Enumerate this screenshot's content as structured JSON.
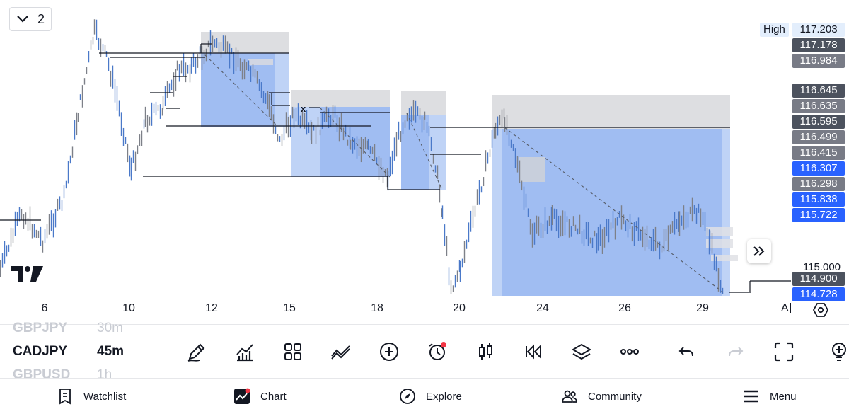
{
  "layout_count": "2",
  "price_labels": [
    {
      "text": "117.203",
      "kind": "high"
    },
    {
      "text": "117.178",
      "kind": "dark"
    },
    {
      "text": "116.984",
      "kind": "gray"
    },
    {
      "text": "116.645",
      "kind": "dark"
    },
    {
      "text": "116.635",
      "kind": "gray"
    },
    {
      "text": "116.595",
      "kind": "dark"
    },
    {
      "text": "116.499",
      "kind": "gray"
    },
    {
      "text": "116.415",
      "kind": "gray"
    },
    {
      "text": "116.307",
      "kind": "blue"
    },
    {
      "text": "116.298",
      "kind": "gray"
    },
    {
      "text": "115.838",
      "kind": "blue"
    },
    {
      "text": "115.722",
      "kind": "blue"
    },
    {
      "text": "115.000",
      "kind": "axis"
    },
    {
      "text": "114.900",
      "kind": "dark"
    },
    {
      "text": "114.728",
      "kind": "blue"
    }
  ],
  "high_tag": "High",
  "x_axis_dates": [
    "6",
    "10",
    "12",
    "15",
    "18",
    "20",
    "24",
    "26",
    "29"
  ],
  "auto_scale_label": "A",
  "colors": {
    "blue_label": "#2962ff",
    "dark_label": "#4c525e",
    "gray_label": "#787b86",
    "zone_gray": "#d1d4dc",
    "zone_blue": "#2962ff",
    "candle": "#4a79c9"
  },
  "toolbar": {
    "watchlist_rows": [
      {
        "symbol": "GBPJPY",
        "timeframe": "30m"
      },
      {
        "symbol": "CADJPY",
        "timeframe": "45m"
      },
      {
        "symbol": "GBPUSD",
        "timeframe": "1h"
      }
    ],
    "tools": [
      "pencil-icon",
      "indicators-icon",
      "grid-icon",
      "trend-icon",
      "plus-circle-icon",
      "alarm-icon",
      "candles-icon",
      "replay-icon",
      "layers-icon",
      "more-icon",
      "undo-icon",
      "redo-icon",
      "fullscreen-icon",
      "bulb-icon"
    ]
  },
  "nav": {
    "watchlist": "Watchlist",
    "chart": "Chart",
    "explore": "Explore",
    "community": "Community",
    "menu": "Menu"
  }
}
